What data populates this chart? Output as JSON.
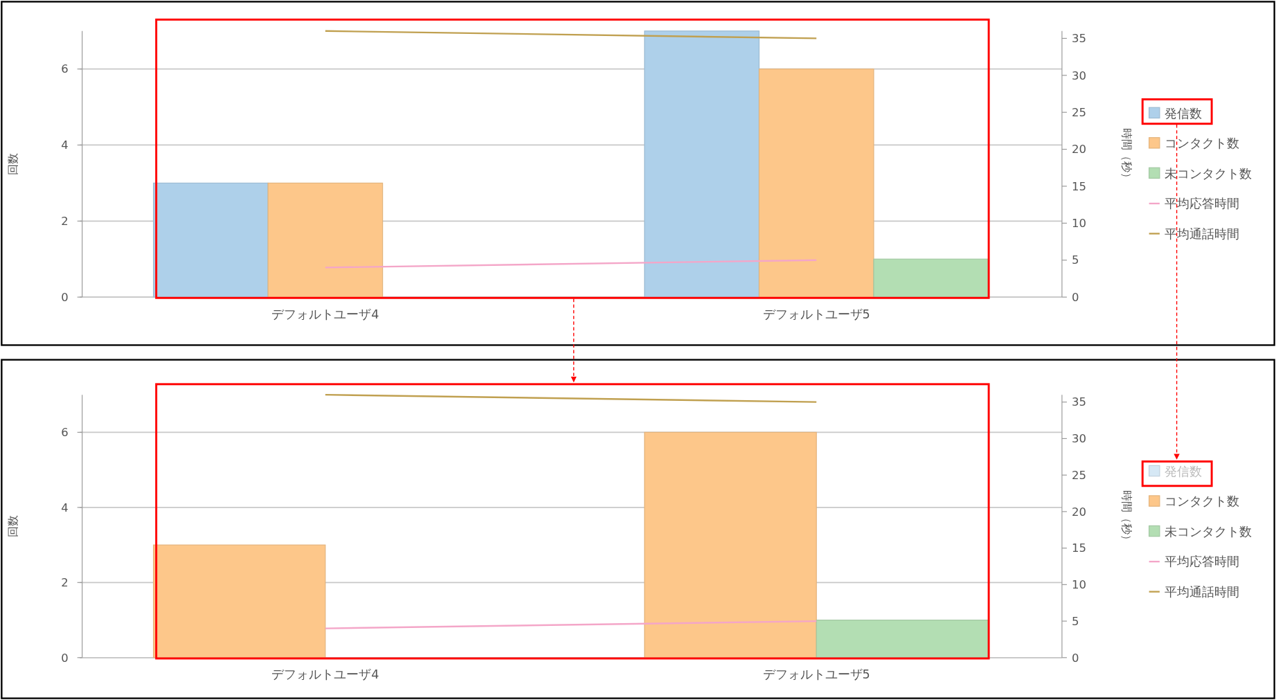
{
  "chart_data": [
    {
      "type": "bar",
      "categories": [
        "デフォルトユーザ4",
        "デフォルトユーザ5"
      ],
      "ylabel": "回数",
      "y2label": "時間（秒）",
      "ylim": [
        0,
        7
      ],
      "yticks": [
        0,
        2,
        4,
        6
      ],
      "y2lim": [
        0,
        36
      ],
      "y2ticks": [
        0,
        5,
        10,
        15,
        20,
        25,
        30,
        35
      ],
      "grid": "y",
      "legend": "right",
      "series": [
        {
          "name": "発信数",
          "color": "#aed0ea",
          "values": [
            3,
            7
          ]
        },
        {
          "name": "コンタクト数",
          "color": "#fdc78a",
          "values": [
            3,
            6
          ]
        },
        {
          "name": "未コンタクト数",
          "color": "#b3deb3",
          "values": [
            0,
            1
          ]
        },
        {
          "name": "平均応答時間",
          "type": "line",
          "axis": "y2",
          "color": "#f4a6c8",
          "values": [
            4,
            5
          ]
        },
        {
          "name": "平均通話時間",
          "type": "line",
          "axis": "y2",
          "color": "#c0a050",
          "values": [
            36,
            35
          ]
        }
      ]
    },
    {
      "type": "bar",
      "categories": [
        "デフォルトユーザ4",
        "デフォルトユーザ5"
      ],
      "ylabel": "回数",
      "y2label": "時間（秒）",
      "ylim": [
        0,
        7
      ],
      "yticks": [
        0,
        2,
        4,
        6
      ],
      "y2lim": [
        0,
        36
      ],
      "y2ticks": [
        0,
        5,
        10,
        15,
        20,
        25,
        30,
        35
      ],
      "grid": "y",
      "legend": "right",
      "series": [
        {
          "name": "発信数",
          "color": "#d6e8f5",
          "values": [
            null,
            null
          ]
        },
        {
          "name": "コンタクト数",
          "color": "#fdc78a",
          "values": [
            3,
            6
          ]
        },
        {
          "name": "未コンタクト数",
          "color": "#b3deb3",
          "values": [
            null,
            1
          ]
        },
        {
          "name": "平均応答時間",
          "type": "line",
          "axis": "y2",
          "color": "#f4a6c8",
          "values": [
            4,
            5
          ]
        },
        {
          "name": "平均通話時間",
          "type": "line",
          "axis": "y2",
          "color": "#c0a050",
          "values": [
            36,
            35
          ]
        }
      ]
    }
  ]
}
